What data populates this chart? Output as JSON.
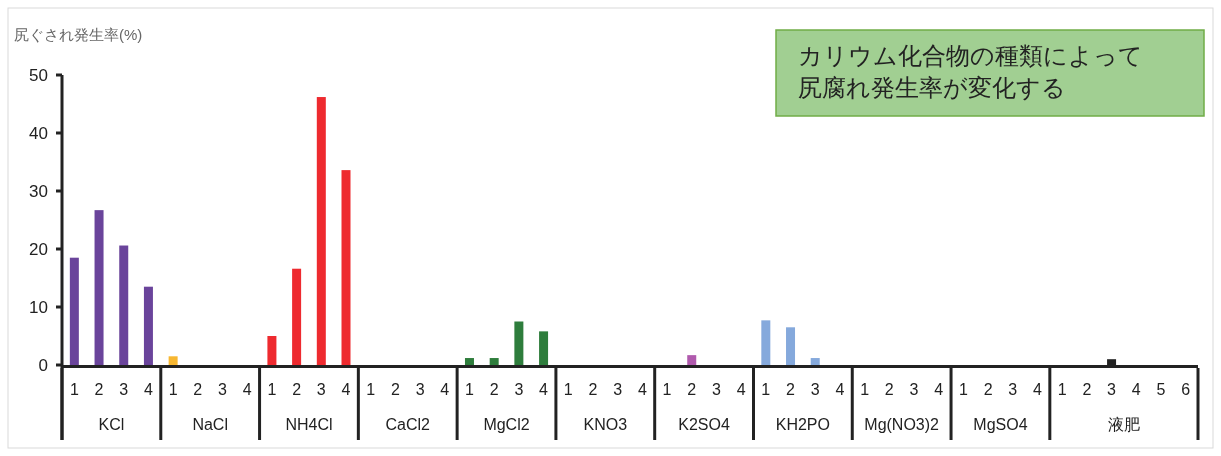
{
  "chart_data": {
    "type": "bar",
    "ylabel": "尻ぐされ発生率(%)",
    "categories": [
      "1",
      "2",
      "3",
      "4",
      "1",
      "2",
      "3",
      "4",
      "1",
      "2",
      "3",
      "4",
      "1",
      "2",
      "3",
      "4",
      "1",
      "2",
      "3",
      "4",
      "1",
      "2",
      "3",
      "4",
      "1",
      "2",
      "3",
      "4",
      "1",
      "2",
      "3",
      "4",
      "1",
      "2",
      "3",
      "4",
      "1",
      "2",
      "3",
      "4",
      "1",
      "2",
      "3",
      "4",
      "5",
      "6"
    ],
    "values": [
      18.5,
      26.7,
      20.6,
      13.5,
      1.5,
      0,
      0,
      0,
      5.0,
      16.6,
      46.2,
      33.6,
      0,
      0,
      0,
      0,
      1.2,
      1.2,
      7.5,
      5.8,
      0,
      0,
      0,
      0,
      0,
      1.7,
      0,
      0,
      7.7,
      6.5,
      1.2,
      0,
      0,
      0,
      0,
      0,
      0,
      0,
      0,
      0,
      0,
      0,
      1.0,
      0,
      0,
      0
    ],
    "colors": [
      "#6a449b",
      "#6a449b",
      "#6a449b",
      "#6a449b",
      "#f7b731",
      "#f7b731",
      "#f7b731",
      "#f7b731",
      "#ee2a2f",
      "#ee2a2f",
      "#ee2a2f",
      "#ee2a2f",
      "#ee2a2f",
      "#ee2a2f",
      "#ee2a2f",
      "#ee2a2f",
      "#2e7d3c",
      "#2e7d3c",
      "#2e7d3c",
      "#2e7d3c",
      "#2e7d3c",
      "#2e7d3c",
      "#2e7d3c",
      "#2e7d3c",
      "#b05aad",
      "#b05aad",
      "#b05aad",
      "#b05aad",
      "#85a9dc",
      "#85a9dc",
      "#85a9dc",
      "#85a9dc",
      "#85a9dc",
      "#85a9dc",
      "#85a9dc",
      "#85a9dc",
      "#85a9dc",
      "#85a9dc",
      "#85a9dc",
      "#85a9dc",
      "#222222",
      "#222222",
      "#222222",
      "#222222",
      "#222222",
      "#222222"
    ],
    "ylim": [
      0,
      50
    ],
    "yticks": [
      0,
      10,
      20,
      30,
      40,
      50
    ],
    "annotations": [
      "カリウム化合物の種類によって",
      "尻腐れ発生率が変化する",
      "KCl",
      "NaCl",
      "NH4Cl",
      "CaCl2",
      "MgCl2",
      "KNO3",
      "K2SO4",
      "KH2PO",
      "Mg(NO3)2",
      "MgSO4",
      "液肥"
    ]
  }
}
